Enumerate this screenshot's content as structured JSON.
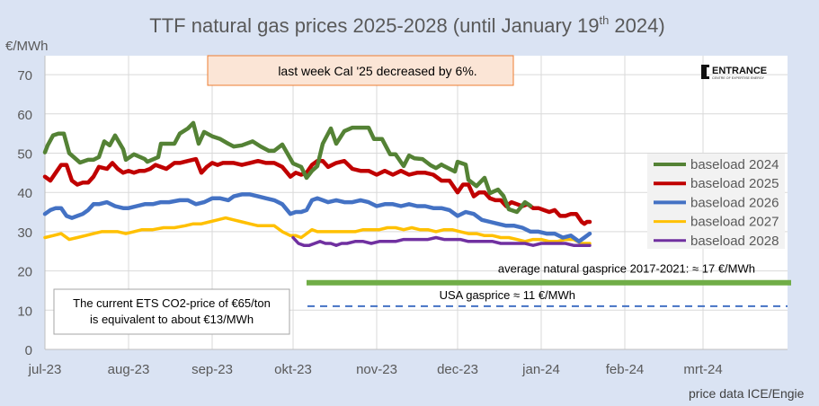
{
  "chart_data": {
    "type": "line",
    "title": "TTF natural gas prices 2025-2028  (until January 19th 2024)",
    "title_main": "TTF natural gas prices 2025-2028  (until January 19",
    "title_sup": "th",
    "title_end": " 2024)",
    "ylabel": "€/MWh",
    "xlabel": "",
    "ylim": [
      0,
      75
    ],
    "yticks": [
      0,
      10,
      20,
      30,
      40,
      50,
      60,
      70
    ],
    "x_start": "2023-07-01",
    "x_unit": "days since 2023-07-01",
    "xlim_days": [
      0,
      275
    ],
    "xticks": [
      {
        "label": "jul-23",
        "day": 0
      },
      {
        "label": "aug-23",
        "day": 31
      },
      {
        "label": "sep-23",
        "day": 62
      },
      {
        "label": "okt-23",
        "day": 92
      },
      {
        "label": "nov-23",
        "day": 123
      },
      {
        "label": "dec-23",
        "day": 153
      },
      {
        "label": "jan-24",
        "day": 184
      },
      {
        "label": "feb-24",
        "day": 215
      },
      {
        "label": "mrt-24",
        "day": 244
      }
    ],
    "grid": true,
    "legend": "right",
    "series": [
      {
        "name": "baseload 2024",
        "color": "#548235",
        "days": [
          0,
          1,
          3,
          5,
          7,
          9,
          13,
          16,
          18,
          20,
          22,
          24,
          26,
          29,
          30,
          33,
          37,
          38,
          42,
          43,
          48,
          50,
          53,
          55,
          57,
          59,
          62,
          65,
          68,
          70,
          73,
          77,
          80,
          83,
          85,
          88,
          92,
          95,
          97,
          99,
          101,
          103,
          106,
          108,
          111,
          114,
          120,
          122,
          125,
          128,
          130,
          133,
          135,
          137,
          140,
          143,
          145,
          147,
          148,
          152,
          153,
          156,
          157,
          160,
          163,
          165,
          168,
          170,
          172,
          175,
          178,
          180
        ],
        "values": [
          50.2,
          52,
          54.5,
          55,
          55,
          50,
          47.6,
          48.3,
          48.3,
          49,
          53,
          52,
          54.5,
          51,
          48.3,
          49.7,
          48.5,
          47.8,
          49,
          52.4,
          52.4,
          55,
          56.3,
          57.7,
          52.4,
          55.4,
          54.3,
          53.6,
          52.4,
          51.7,
          52,
          53,
          51.7,
          50.6,
          50.6,
          52.2,
          47.4,
          46.5,
          43.7,
          45.5,
          46.7,
          52.4,
          56.3,
          52.4,
          55.6,
          56.5,
          56.5,
          53.6,
          53.6,
          49.7,
          49.7,
          46.7,
          49.4,
          48.7,
          48.5,
          46.9,
          46.2,
          47.1,
          46.7,
          45.3,
          47.8,
          47.1,
          43.2,
          41.6,
          43.7,
          39.8,
          40.7,
          39.1,
          35.7,
          35,
          37.5,
          36.6
        ]
      },
      {
        "name": "baseload 2025",
        "color": "#c00000",
        "days": [
          0,
          2,
          4,
          6,
          8,
          10,
          12,
          14,
          16,
          18,
          20,
          23,
          25,
          27,
          29,
          31,
          33,
          35,
          37,
          39,
          41,
          45,
          48,
          50,
          53,
          56,
          58,
          60,
          62,
          64,
          66,
          70,
          73,
          76,
          79,
          82,
          85,
          88,
          91,
          93,
          95,
          97,
          99,
          101,
          103,
          105,
          108,
          111,
          114,
          117,
          120,
          123,
          126,
          129,
          132,
          135,
          138,
          141,
          144,
          147,
          150,
          153,
          155,
          157,
          159,
          161,
          163,
          165,
          167,
          169,
          171,
          173,
          175,
          177,
          179,
          181,
          183,
          185,
          187,
          189,
          191,
          193,
          195,
          197,
          199,
          200,
          201,
          202
        ],
        "values": [
          44,
          43,
          45,
          47,
          47,
          43,
          42,
          42.5,
          42.5,
          44,
          46.5,
          46,
          47.5,
          46,
          45,
          45.5,
          45,
          45.5,
          45.5,
          46,
          47,
          46,
          47.5,
          47.5,
          48,
          48.5,
          45,
          46.5,
          47.5,
          47,
          47.5,
          47.5,
          47,
          47.5,
          48,
          47.5,
          47.5,
          46.5,
          44,
          45,
          44.5,
          45,
          47,
          48,
          48,
          46.5,
          47.5,
          48,
          46,
          45.5,
          45.5,
          44.5,
          45.5,
          44.5,
          45.5,
          44.5,
          45,
          45,
          44.5,
          43,
          43,
          40,
          42,
          42,
          39,
          40,
          40,
          38.5,
          38,
          38,
          36.5,
          37.5,
          37,
          36.5,
          37,
          36,
          36,
          35.5,
          35,
          35.5,
          34,
          34,
          34.5,
          34.5,
          32.5,
          32,
          32.5,
          32.5
        ]
      },
      {
        "name": "baseload 2026",
        "color": "#4472c4",
        "days": [
          0,
          2,
          4,
          6,
          8,
          10,
          12,
          14,
          16,
          18,
          20,
          23,
          26,
          29,
          31,
          34,
          37,
          40,
          43,
          46,
          50,
          53,
          56,
          59,
          62,
          65,
          68,
          70,
          73,
          76,
          79,
          82,
          85,
          88,
          91,
          93,
          95,
          97,
          99,
          101,
          103,
          105,
          108,
          111,
          114,
          117,
          120,
          123,
          126,
          129,
          132,
          135,
          138,
          141,
          144,
          147,
          150,
          153,
          156,
          159,
          162,
          165,
          168,
          171,
          174,
          177,
          180,
          183,
          186,
          189,
          192,
          195,
          198,
          200,
          202
        ],
        "values": [
          34.5,
          35.5,
          36,
          36,
          34,
          33.5,
          34,
          34.5,
          35.5,
          37,
          37,
          37.5,
          36.5,
          36,
          36,
          36.5,
          37,
          37,
          37.5,
          37.5,
          38,
          38,
          37,
          37.5,
          38.5,
          38.5,
          38,
          39,
          39.5,
          39.5,
          39,
          38.5,
          38,
          37,
          34.5,
          35,
          35,
          35.5,
          38,
          38.5,
          38,
          37.5,
          38,
          37.5,
          37.5,
          38,
          37.5,
          36.5,
          37,
          37,
          36.5,
          37,
          36.5,
          36.5,
          36,
          36,
          35.5,
          34,
          35,
          34.5,
          33,
          32.5,
          32,
          31.5,
          31.5,
          31,
          30,
          30,
          29.5,
          29.5,
          28.5,
          29,
          27.5,
          28.5,
          29.5
        ]
      },
      {
        "name": "baseload 2027",
        "color": "#ffc000",
        "days": [
          0,
          3,
          6,
          9,
          12,
          15,
          18,
          21,
          24,
          27,
          30,
          33,
          36,
          40,
          44,
          48,
          52,
          55,
          58,
          61,
          64,
          67,
          70,
          73,
          76,
          79,
          82,
          85,
          88,
          91,
          93,
          95,
          97,
          99,
          101,
          103,
          106,
          109,
          112,
          115,
          118,
          121,
          124,
          127,
          130,
          133,
          136,
          139,
          142,
          145,
          148,
          151,
          154,
          157,
          160,
          163,
          166,
          169,
          172,
          175,
          178,
          181,
          184,
          187,
          190,
          193,
          196,
          199,
          202
        ],
        "values": [
          28.5,
          29,
          29.5,
          28,
          28.5,
          29,
          29.5,
          30,
          30,
          30,
          29.5,
          30,
          30.5,
          30.5,
          31,
          31,
          31.5,
          32,
          32,
          32.5,
          33,
          33.5,
          33,
          32.5,
          32,
          31.5,
          31.5,
          31.5,
          30,
          29,
          29,
          28.5,
          29.5,
          30.5,
          30,
          30,
          30,
          30,
          30,
          30,
          30.5,
          30.5,
          30.5,
          31,
          31,
          30.5,
          31,
          30.5,
          30.5,
          30,
          30.5,
          30.5,
          30,
          29.5,
          29.5,
          29,
          29,
          28.5,
          28.5,
          28,
          27.5,
          28,
          28,
          27.5,
          27.5,
          28,
          28,
          27,
          27
        ]
      },
      {
        "name": "baseload 2028",
        "color": "#7030a0",
        "days": [
          92,
          94,
          96,
          98,
          100,
          102,
          104,
          106,
          108,
          110,
          112,
          115,
          118,
          121,
          124,
          127,
          130,
          133,
          136,
          139,
          142,
          145,
          148,
          151,
          154,
          157,
          160,
          163,
          166,
          169,
          172,
          175,
          178,
          181,
          184,
          187,
          190,
          193,
          196,
          199,
          202
        ],
        "values": [
          28.5,
          27,
          26.5,
          26.5,
          27,
          27.5,
          27,
          27,
          26.5,
          27,
          27,
          27.5,
          27.5,
          27,
          27.5,
          27.5,
          27.5,
          28,
          28,
          28,
          28,
          28.5,
          28,
          28,
          28,
          27.5,
          27.5,
          27.5,
          27.5,
          27,
          27,
          27,
          27,
          26.5,
          27,
          27,
          27,
          27,
          26.5,
          26.5,
          26.5
        ]
      }
    ],
    "reference_lines": [
      {
        "name": "average natural gasprice 2017-2021",
        "value": 17,
        "color": "#70ad47",
        "style": "solid",
        "day_start": 98,
        "label": "average natural gasprice 2017-2021: ≈ 17 €/MWh"
      },
      {
        "name": "USA gasprice",
        "value": 11,
        "color": "#4472c4",
        "style": "dashed",
        "day_start": 98,
        "label": "USA gasprice ≈ 11 €/MWh"
      }
    ],
    "annotations": [
      {
        "text": "last week Cal '25 decreased by 6%.",
        "type": "callout"
      },
      {
        "text": "The current ETS CO2-price of €65/ton",
        "text2": "is equivalent to about €13/MWh",
        "type": "note"
      }
    ],
    "source": "price data ICE/Engie",
    "logo": {
      "name": "ENTRANCE",
      "subtitle": "CENTRE OF EXPERTISE ENERGY"
    }
  }
}
